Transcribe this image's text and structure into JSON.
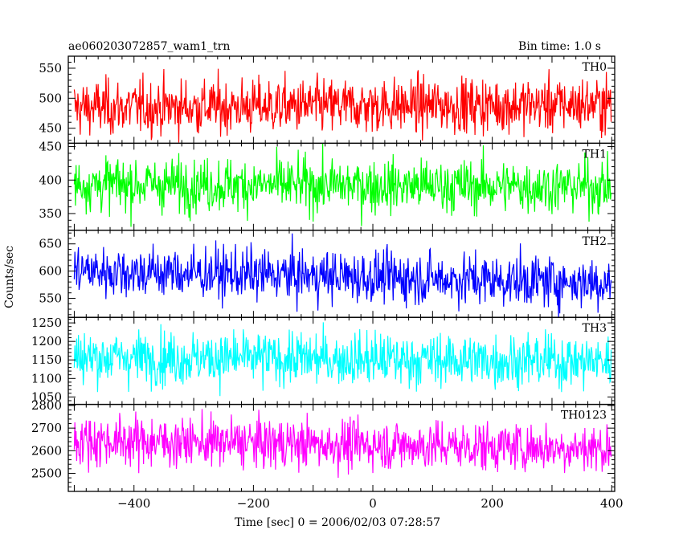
{
  "chart_data": {
    "type": "line",
    "title_left": "ae060203072857_wam1_trn",
    "title_right": "Bin time: 1.0 s",
    "xlabel": "Time [sec] 0 = 2006/02/03 07:28:57",
    "ylabel": "Counts/sec",
    "xlim": [
      -510,
      405
    ],
    "x_ticks": [
      -400,
      -200,
      0,
      200,
      400
    ],
    "x_tick_labels": [
      "−400",
      "−200",
      "0",
      "200",
      "400"
    ],
    "x_start": -500,
    "x_end": 399,
    "bin": 1.0,
    "panels": [
      {
        "name": "TH0",
        "color": "#ff0000",
        "ylim": [
          425,
          570
        ],
        "yticks": [
          450,
          500,
          550
        ],
        "mean": 487,
        "sd": 23,
        "trend": 6
      },
      {
        "name": "TH1",
        "color": "#00ff00",
        "ylim": [
          325,
          455
        ],
        "yticks": [
          350,
          400,
          450
        ],
        "mean": 392,
        "sd": 20,
        "trend": -4
      },
      {
        "name": "TH2",
        "color": "#0000ff",
        "ylim": [
          515,
          675
        ],
        "yticks": [
          550,
          600,
          650
        ],
        "mean": 590,
        "sd": 24,
        "trend": -22
      },
      {
        "name": "TH3",
        "color": "#00ffff",
        "ylim": [
          1030,
          1265
        ],
        "yticks": [
          1050,
          1100,
          1150,
          1200,
          1250
        ],
        "mean": 1152,
        "sd": 36,
        "trend": -12
      },
      {
        "name": "TH0123",
        "color": "#ff00ff",
        "ylim": [
          2420,
          2805
        ],
        "yticks": [
          2500,
          2600,
          2700,
          2800
        ],
        "mean": 2628,
        "sd": 55,
        "trend": -35
      }
    ]
  }
}
